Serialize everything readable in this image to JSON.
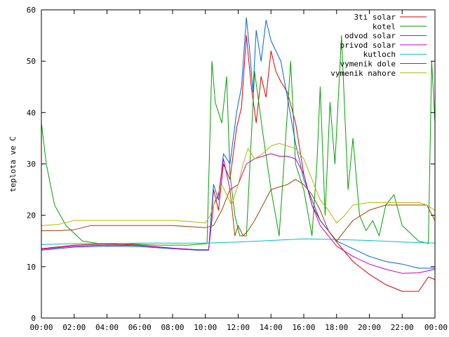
{
  "chart_data": {
    "type": "line",
    "ylabel": "teplota ve C",
    "xlabel": "",
    "title": "",
    "ylim": [
      0,
      60
    ],
    "xlim": [
      0,
      24
    ],
    "grid": false,
    "legend_position": "top-right",
    "y_ticks": [
      {
        "value": 0,
        "label": "0"
      },
      {
        "value": 10,
        "label": "10"
      },
      {
        "value": 20,
        "label": "20"
      },
      {
        "value": 30,
        "label": "30"
      },
      {
        "value": 40,
        "label": "40"
      },
      {
        "value": 50,
        "label": "50"
      },
      {
        "value": 60,
        "label": "60"
      }
    ],
    "x_ticks": [
      {
        "value": 0,
        "label": "00:00"
      },
      {
        "value": 2,
        "label": "02:00"
      },
      {
        "value": 4,
        "label": "04:00"
      },
      {
        "value": 6,
        "label": "06:00"
      },
      {
        "value": 8,
        "label": "08:00"
      },
      {
        "value": 10,
        "label": "10:00"
      },
      {
        "value": 12,
        "label": "12:00"
      },
      {
        "value": 14,
        "label": "14:00"
      },
      {
        "value": 16,
        "label": "16:00"
      },
      {
        "value": 18,
        "label": "18:00"
      },
      {
        "value": 20,
        "label": "20:00"
      },
      {
        "value": 22,
        "label": "22:00"
      },
      {
        "value": 24,
        "label": "00:00"
      }
    ],
    "series": [
      {
        "name": "3ti solar",
        "color": "#e00000",
        "x": [
          0,
          2,
          4,
          6,
          8,
          9.5,
          10.2,
          10.5,
          10.8,
          11.1,
          11.5,
          11.9,
          12.2,
          12.5,
          12.8,
          13.1,
          13.4,
          13.7,
          14,
          14.3,
          14.6,
          15,
          15.5,
          16,
          16.5,
          17,
          17.5,
          18,
          19,
          20,
          21,
          22,
          23,
          23.6,
          24
        ],
        "y": [
          13.5,
          14.2,
          14.4,
          14.2,
          13.6,
          13.3,
          13.3,
          25,
          21,
          30,
          27,
          37,
          41,
          55,
          45,
          38,
          47,
          43,
          52,
          48,
          46,
          44,
          38,
          28,
          22,
          19,
          17,
          14.8,
          11,
          8.5,
          6.5,
          5.2,
          5.2,
          8,
          7.5
        ]
      },
      {
        "name": "kotel",
        "color": "#00a000",
        "x": [
          0,
          0.3,
          0.8,
          1.5,
          2.5,
          3.5,
          5,
          7,
          9,
          10.1,
          10.4,
          10.6,
          11,
          11.3,
          11.5,
          11.8,
          12.1,
          12.5,
          13,
          13.5,
          14,
          14.5,
          15,
          15.2,
          15.5,
          16,
          16.5,
          16.8,
          17,
          17.3,
          17.6,
          17.9,
          18.3,
          18.7,
          19,
          19.4,
          19.8,
          20.2,
          20.6,
          21,
          21.5,
          22,
          23,
          23.6,
          23.8,
          24
        ],
        "y": [
          38,
          30,
          22,
          18,
          15,
          14.5,
          14.5,
          14.2,
          14.2,
          14.5,
          50,
          42,
          38,
          47,
          28,
          20,
          16,
          16,
          48,
          36,
          25,
          16,
          40,
          50,
          30,
          25,
          16,
          30,
          45,
          20,
          42,
          30,
          55,
          25,
          35,
          20,
          17,
          19,
          16,
          22,
          24,
          18,
          15,
          14.5,
          50,
          38
        ]
      },
      {
        "name": "odvod solar",
        "color": "#0060e0",
        "x": [
          0,
          2,
          4,
          6,
          8,
          9.5,
          10.2,
          10.5,
          10.8,
          11.1,
          11.5,
          11.9,
          12.2,
          12.5,
          12.7,
          12.9,
          13.1,
          13.4,
          13.7,
          14,
          14.3,
          14.6,
          15,
          15.5,
          16,
          16.5,
          17,
          17.5,
          18,
          19,
          20,
          21,
          22,
          23,
          24
        ],
        "y": [
          13.2,
          13.8,
          14,
          13.9,
          13.5,
          13.2,
          13.2,
          26,
          23,
          32,
          30,
          40,
          45,
          58.5,
          52,
          44,
          56,
          50,
          58,
          54,
          52,
          50,
          43,
          34,
          27,
          23,
          19,
          17,
          15,
          13.5,
          12,
          11,
          10.5,
          9.7,
          9.7
        ]
      },
      {
        "name": "privod solar",
        "color": "#c000c0",
        "x": [
          0,
          2,
          4,
          6,
          8,
          9.5,
          10.2,
          10.5,
          10.8,
          11.1,
          11.5,
          12,
          12.5,
          13,
          13.5,
          14,
          14.5,
          15,
          15.5,
          16,
          16.5,
          17,
          17.5,
          18,
          19,
          20,
          21,
          22,
          23,
          24
        ],
        "y": [
          13.4,
          14,
          14.2,
          14.1,
          13.6,
          13.3,
          13.3,
          22,
          24,
          31,
          25,
          26,
          30,
          31,
          31.5,
          32,
          31.5,
          31.5,
          31,
          28,
          22,
          18,
          16,
          14,
          12,
          10.5,
          9.5,
          8.7,
          8.8,
          9.5
        ]
      },
      {
        "name": "kutloch",
        "color": "#00c0c0",
        "x": [
          0,
          2,
          4,
          6,
          8,
          10,
          12,
          14,
          16,
          18,
          20,
          22,
          24
        ],
        "y": [
          14.3,
          14.5,
          14.5,
          14.6,
          14.6,
          14.6,
          14.8,
          15.1,
          15.4,
          15.3,
          15.1,
          14.8,
          14.6
        ]
      },
      {
        "name": "vymenik dole",
        "color": "#a04000",
        "x": [
          0,
          1,
          2,
          3,
          4,
          6,
          8,
          9,
          10,
          10.5,
          11,
          11.5,
          11.8,
          12,
          12.3,
          12.6,
          13,
          13.5,
          14,
          14.5,
          15,
          15.5,
          16,
          16.5,
          17,
          17.5,
          18,
          18.5,
          19,
          20,
          21,
          22,
          23,
          23.5,
          24
        ],
        "y": [
          17,
          17,
          17.2,
          18,
          18,
          18,
          18,
          17.8,
          17.6,
          18,
          21,
          25,
          16,
          18,
          16,
          17,
          19,
          22,
          25,
          25.5,
          26,
          27,
          26,
          24,
          21,
          17,
          15,
          17,
          19,
          21,
          22,
          22,
          22,
          22,
          19
        ]
      },
      {
        "name": "vymenik nahore",
        "color": "#c0b000",
        "x": [
          0,
          1,
          2,
          3,
          4,
          6,
          8,
          9,
          10,
          10.3,
          10.6,
          11,
          11.3,
          11.6,
          12,
          12.3,
          12.6,
          13,
          13.5,
          14,
          14.5,
          15,
          15.5,
          16,
          16.5,
          17,
          17.5,
          18,
          18.5,
          19,
          20,
          21,
          22,
          23,
          23.5,
          24
        ],
        "y": [
          18,
          18.2,
          19,
          19,
          19,
          19,
          19,
          18.8,
          18.5,
          20,
          23,
          26,
          24,
          22,
          26,
          30,
          33,
          31,
          32,
          33.5,
          34,
          33.5,
          33,
          31,
          27,
          23,
          21,
          18.5,
          20,
          22,
          22.5,
          22.5,
          22.5,
          22.5,
          22,
          21
        ]
      }
    ]
  }
}
